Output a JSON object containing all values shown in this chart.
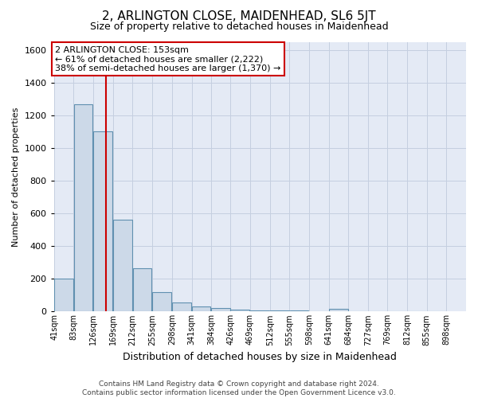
{
  "title": "2, ARLINGTON CLOSE, MAIDENHEAD, SL6 5JT",
  "subtitle": "Size of property relative to detached houses in Maidenhead",
  "xlabel": "Distribution of detached houses by size in Maidenhead",
  "ylabel": "Number of detached properties",
  "footer_line1": "Contains HM Land Registry data © Crown copyright and database right 2024.",
  "footer_line2": "Contains public sector information licensed under the Open Government Licence v3.0.",
  "bar_color": "#ccd9e8",
  "bar_edge_color": "#6090b0",
  "grid_color": "#c5cfe0",
  "background_color": "#e4eaf5",
  "annotation_box_color": "#cc0000",
  "property_line_color": "#cc0000",
  "property_sqm": 153,
  "annotation_title": "2 ARLINGTON CLOSE: 153sqm",
  "annotation_line1": "← 61% of detached houses are smaller (2,222)",
  "annotation_line2": "38% of semi-detached houses are larger (1,370) →",
  "bin_labels": [
    "41sqm",
    "83sqm",
    "126sqm",
    "169sqm",
    "212sqm",
    "255sqm",
    "298sqm",
    "341sqm",
    "384sqm",
    "426sqm",
    "469sqm",
    "512sqm",
    "555sqm",
    "598sqm",
    "641sqm",
    "684sqm",
    "727sqm",
    "769sqm",
    "812sqm",
    "855sqm",
    "898sqm"
  ],
  "bin_left_edges": [
    41,
    83,
    126,
    169,
    212,
    255,
    298,
    341,
    384,
    426,
    469,
    512,
    555,
    598,
    641,
    684,
    727,
    769,
    812,
    855,
    898
  ],
  "bin_width": 42,
  "bar_heights": [
    200,
    1270,
    1100,
    560,
    265,
    120,
    55,
    30,
    20,
    10,
    5,
    5,
    5,
    0,
    15,
    0,
    0,
    0,
    0,
    0
  ],
  "ylim": [
    0,
    1650
  ],
  "yticks": [
    0,
    200,
    400,
    600,
    800,
    1000,
    1200,
    1400,
    1600
  ],
  "title_fontsize": 11,
  "subtitle_fontsize": 9,
  "ylabel_fontsize": 8,
  "xlabel_fontsize": 9,
  "tick_fontsize": 8,
  "xtick_fontsize": 7,
  "footer_fontsize": 6.5,
  "annotation_fontsize": 8
}
